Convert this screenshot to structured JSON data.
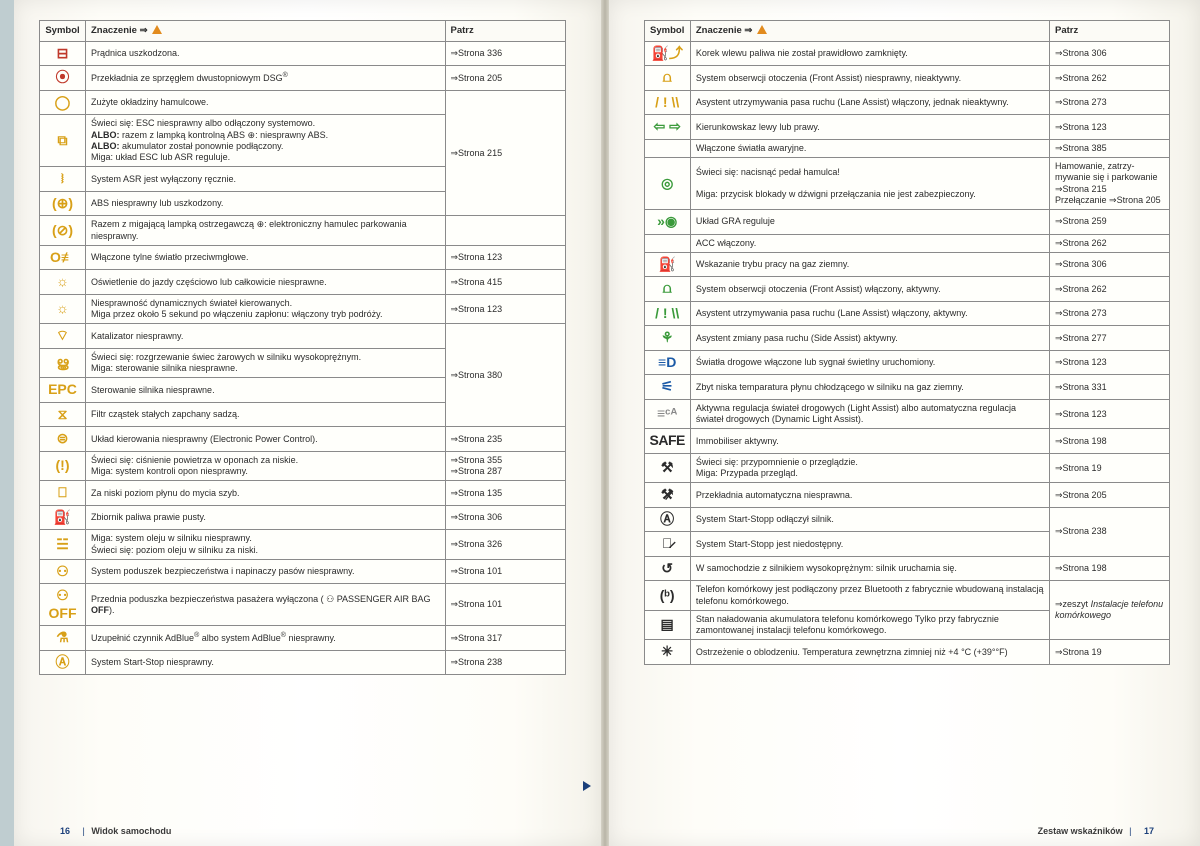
{
  "header": {
    "symbol": "Symbol",
    "meaning_prefix": "Znaczenie ⇒",
    "ref": "Patrz"
  },
  "left": {
    "rows": [
      {
        "icon": "⊟",
        "cls": "ic-red",
        "text": "Prądnica uszkodzona.",
        "ref": "⇒Strona 336",
        "span": 1
      },
      {
        "icon": "⦿",
        "cls": "ic-red",
        "text": "Przekładnia ze sprzęgłem dwustopniowym DSG<sup>®</sup>",
        "ref": "⇒Strona 205",
        "span": 1
      },
      {
        "icon": "◯",
        "cls": "ic-yel",
        "text": "Zużyte okładziny hamulcowe.",
        "ref": "",
        "span": 4,
        "refText": "⇒Strona 215"
      },
      {
        "icon": "⧉",
        "cls": "ic-yel",
        "text": "Świeci się: ESC niesprawny albo odłączony systemowo.<br><b>ALBO:</b> razem z lampką kontrolną ABS ⊕: niesprawny ABS.<br><b>ALBO:</b> akumulator został ponownie podłączony.<br>Miga: układ ESC lub ASR reguluje.",
        "merge": true
      },
      {
        "icon": "⧘",
        "cls": "ic-yel",
        "text": "System ASR jest wyłączony ręcznie.",
        "merge": true
      },
      {
        "icon": "(⊕)",
        "cls": "ic-yel",
        "text": "ABS niesprawny lub uszkodzony.",
        "merge": true
      },
      {
        "icon": "(⊘)",
        "cls": "ic-yel",
        "text": "Razem z migającą lampką ostrzegawczą ⊕: elektroniczny hamulec parkowania niesprawny.",
        "ref": "",
        "span": 1
      },
      {
        "icon": "O≢",
        "cls": "ic-yel",
        "text": "Włączone tylne światło przeciwmgłowe.",
        "ref": "⇒Strona 123",
        "span": 1
      },
      {
        "icon": "☼",
        "cls": "ic-yel",
        "text": "Oświetlenie do jazdy częściowo lub całkowicie niesprawne.",
        "ref": "⇒Strona 415",
        "span": 1
      },
      {
        "icon": "☼",
        "cls": "ic-yel",
        "text": "Niesprawność dynamicznych świateł kierowanych.<br>Miga przez około 5 sekund po włączeniu zapłonu: włączony tryb podróży.",
        "ref": "⇒Strona 123",
        "span": 1
      },
      {
        "icon": "⌔",
        "cls": "ic-yel",
        "text": "Katalizator niesprawny.",
        "ref": "",
        "span": 4,
        "refText": "⇒Strona 380"
      },
      {
        "icon": "ൠ",
        "cls": "ic-yel",
        "text": "Świeci się: rozgrzewanie świec żarowych w silniku wysokoprężnym.<br>Miga: sterowanie silnika niesprawne.",
        "merge": true
      },
      {
        "icon": "EPC",
        "cls": "ic-yel ic-epc",
        "text": "Sterowanie silnika niesprawne.",
        "merge": true
      },
      {
        "icon": "⧖",
        "cls": "ic-yel",
        "text": "Filtr cząstek stałych zapchany sadzą.",
        "merge": true
      },
      {
        "icon": "⊜",
        "cls": "ic-yel",
        "text": "Układ kierowania niesprawny (Electronic Power Control).",
        "ref": "⇒Strona 235",
        "span": 1
      },
      {
        "icon": "(!)",
        "cls": "ic-yel",
        "text": "Świeci się: ciśnienie powietrza w oponach za niskie.<br>Miga: system kontroli opon niesprawny.",
        "ref": "⇒Strona 355<br>⇒Strona 287",
        "span": 1
      },
      {
        "icon": "⎕",
        "cls": "ic-yel",
        "text": "Za niski poziom płynu do mycia szyb.",
        "ref": "⇒Strona 135",
        "span": 1
      },
      {
        "icon": "⛽",
        "cls": "ic-yel",
        "text": "Zbiornik paliwa prawie pusty.",
        "ref": "⇒Strona 306",
        "span": 1
      },
      {
        "icon": "☱",
        "cls": "ic-yel",
        "text": "Miga: system oleju w silniku niesprawny.<br>Świeci się: poziom oleju w silniku za niski.",
        "ref": "⇒Strona 326",
        "span": 1
      },
      {
        "icon": "⚇",
        "cls": "ic-yel",
        "text": "System poduszek bezpieczeństwa i napinaczy pasów niesprawny.",
        "ref": "⇒Strona 101",
        "span": 1
      },
      {
        "icon": "⚇ OFF",
        "cls": "ic-yel ic-epc",
        "text": "Przednia poduszka bezpieczeństwa pasażera wyłączona ( ⚇ PASSENGER AIR BAG <b>OFF</b>).",
        "ref": "⇒Strona 101",
        "span": 1
      },
      {
        "icon": "⚗",
        "cls": "ic-yel",
        "text": "Uzupełnić czynnik AdBlue<sup>®</sup> albo system AdBlue<sup>®</sup> niesprawny.",
        "ref": "⇒Strona 317",
        "span": 1
      },
      {
        "icon": "Ⓐ",
        "cls": "ic-yel",
        "text": "System Start-Stop niesprawny.",
        "ref": "⇒Strona 238",
        "span": 1
      }
    ],
    "footer_page": "16",
    "footer_text": "Widok samochodu"
  },
  "right": {
    "rows": [
      {
        "icon": "⛽⤴",
        "cls": "ic-yel",
        "text": "Korek wlewu paliwa nie został prawidłowo zamknięty.",
        "ref": "⇒Strona 306"
      },
      {
        "icon": "⩍",
        "cls": "ic-yel",
        "text": "System obserwcji otoczenia (Front Assist) niesprawny, nieaktywny.",
        "ref": "⇒Strona 262"
      },
      {
        "icon": "/ ! \\\\",
        "cls": "ic-yel",
        "text": "Asystent utrzymywania pasa ruchu (Lane Assist) włączony, jednak nieaktywny.",
        "ref": "⇒Strona 273"
      },
      {
        "icon": "⇦ ⇨",
        "cls": "ic-grn",
        "text": "Kierunkowskaz lewy lub prawy.",
        "ref": "⇒Strona 123"
      },
      {
        "icon": "",
        "cls": "",
        "text": "Włączone światła awaryjne.",
        "ref": "⇒Strona 385"
      },
      {
        "icon": "◎",
        "cls": "ic-grn",
        "text": "Świeci się: nacisnąć pedał hamulca!<br><br>Miga: przycisk blokady w dźwigni przełączania nie jest zabezpie­czony.",
        "ref": "Hamowanie, zatrzy­mywanie się i parko­wanie ⇒Strona 215<br>Przełączanie ⇒Strona 205"
      },
      {
        "icon": "»◉",
        "cls": "ic-grn",
        "text": "Układ GRA reguluje",
        "ref": "⇒Strona 259"
      },
      {
        "icon": "",
        "cls": "",
        "text": "ACC włączony.",
        "ref": "⇒Strona 262"
      },
      {
        "icon": "⛽",
        "cls": "ic-grn",
        "text": "Wskazanie trybu pracy na gaz ziemny.",
        "ref": "⇒Strona 306"
      },
      {
        "icon": "⩍",
        "cls": "ic-grn",
        "text": "System obserwcji otoczenia (Front Assist) włączony, aktywny.",
        "ref": "⇒Strona 262"
      },
      {
        "icon": "/ ! \\\\",
        "cls": "ic-grn",
        "text": "Asystent utrzymywania pasa ruchu (Lane Assist) włączony, aktyw­ny.",
        "ref": "⇒Strona 273"
      },
      {
        "icon": "⚘",
        "cls": "ic-grn",
        "text": "Asystent zmiany pasa ruchu (Side Assist) aktywny.",
        "ref": "⇒Strona 277"
      },
      {
        "icon": "≡D",
        "cls": "ic-blu",
        "text": "Światła drogowe włączone lub sygnał świetlny uruchomiony.",
        "ref": "⇒Strona 123"
      },
      {
        "icon": "⚟",
        "cls": "ic-blu",
        "text": "Zbyt niska temparatura płynu chłodzącego w silniku na gaz ziemny.",
        "ref": "⇒Strona 331"
      },
      {
        "icon": "≡ᶜᴬ",
        "cls": "ic-wht",
        "text": "Aktywna regulacja świateł drogowych (Light Assist) albo automa­tyczna regulacja świateł drogowych (Dynamic Light Assist).",
        "ref": "⇒Strona 123"
      },
      {
        "icon": "SAFE",
        "cls": "safe",
        "text": "Immobiliser aktywny.",
        "ref": "⇒Strona 198"
      },
      {
        "icon": "⚒",
        "cls": "",
        "text": "Świeci się: przypomnienie o przeglądzie.<br>Miga: Przypada przegląd.",
        "ref": "⇒Strona 19"
      },
      {
        "icon": "⚒̷",
        "cls": "",
        "text": "Przekładnia automatyczna niesprawna.",
        "ref": "⇒Strona 205"
      },
      {
        "icon": "Ⓐ",
        "cls": "",
        "text": "System Start-Stopp odłączył silnik.",
        "ref": "",
        "span": 2,
        "refText": "⇒Strona 238"
      },
      {
        "icon": "Ⓐ̷",
        "cls": "",
        "text": "System Start-Stopp jest niedostępny.",
        "merge": true
      },
      {
        "icon": "↺",
        "cls": "",
        "text": "W samochodzie z silnikiem wysokoprężnym: silnik uruchamia się.",
        "ref": "⇒Strona 198"
      },
      {
        "icon": "(ᵇ)",
        "cls": "",
        "text": "Telefon komórkowy jest podłączony przez Bluetooth z fabrycznie wbudowaną instalacją telefonu komórkowego.",
        "ref": "",
        "span": 2,
        "refText": "⇒zeszyt <i>Instalacje te­lefonu komórkowego</i>"
      },
      {
        "icon": "▤",
        "cls": "",
        "text": "Stan naładowania akumulatora telefonu komórkowego Tylko przy fabrycznie zamontowanej instalacji telefonu komórkowego.",
        "merge": true
      },
      {
        "icon": "✳",
        "cls": "",
        "text": "Ostrzeżenie o oblodzeniu. Temperatura zewnętrzna zimniej niż +4 °C (+39°°F)",
        "ref": "⇒Strona 19"
      }
    ],
    "footer_text": "Zestaw wskaźników",
    "footer_page": "17"
  }
}
